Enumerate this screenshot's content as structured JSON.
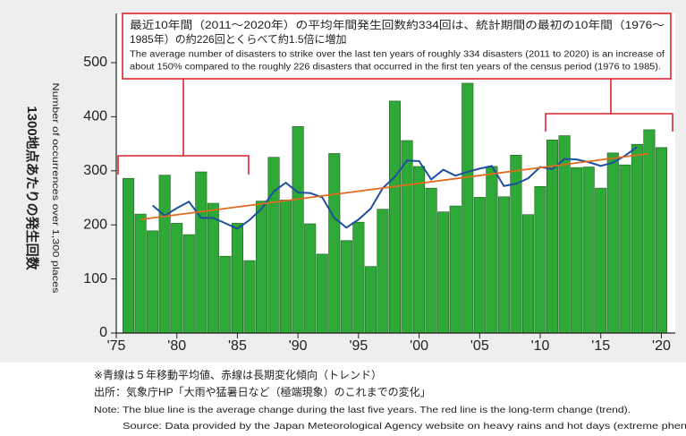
{
  "chart_data": {
    "type": "bar",
    "ylabel": "1300地点あたりの発生回数",
    "ylabel_en": "Number of occurrences over 1,300 places",
    "annotation": [
      "最近10年間（2011～2020年）の平均年間発生回数約334回は、統計期間の最初の10年間（1976～",
      "1985年）の約226回とくらべて約1.5倍に増加",
      "The average number of disasters to strike over the last ten years of roughly 334 disasters (2011 to 2020) is an increase of",
      "about 150% compared to the roughly 226 disasters that occurred in the first ten years of the census period (1976 to 1985)."
    ],
    "notes": [
      "※青線は５年移動平均値、赤線は長期変化傾向（トレンド）",
      "出所：気象庁HP「大雨や猛暑日など（極端現象）のこれまでの変化」",
      "Note: The blue line is the average change during the last five years. The red line is the long-term change (trend).",
      "Source: Data provided by the Japan Meteorological Agency website on heavy rains and hot days (extreme phenomena"
    ],
    "x": [
      1976,
      1977,
      1978,
      1979,
      1980,
      1981,
      1982,
      1983,
      1984,
      1985,
      1986,
      1987,
      1988,
      1989,
      1990,
      1991,
      1992,
      1993,
      1994,
      1995,
      1996,
      1997,
      1998,
      1999,
      2000,
      2001,
      2002,
      2003,
      2004,
      2005,
      2006,
      2007,
      2008,
      2009,
      2010,
      2011,
      2012,
      2013,
      2014,
      2015,
      2016,
      2017,
      2018,
      2019,
      2020
    ],
    "values": [
      286,
      220,
      189,
      292,
      203,
      182,
      298,
      240,
      142,
      203,
      134,
      244,
      325,
      246,
      382,
      202,
      146,
      332,
      171,
      205,
      123,
      229,
      429,
      356,
      308,
      268,
      224,
      235,
      462,
      251,
      308,
      252,
      329,
      219,
      271,
      357,
      365,
      306,
      307,
      268,
      333,
      311,
      349,
      376,
      343
    ],
    "color": "#2ea836",
    "lines": [
      {
        "color": "#1f4fa0",
        "x": [
          1978,
          1979,
          1980,
          1981,
          1982,
          1983,
          1984,
          1985,
          1986,
          1987,
          1988,
          1989,
          1990,
          1991,
          1992,
          1993,
          1994,
          1995,
          1996,
          1997,
          1998,
          1999,
          2000,
          2001,
          2002,
          2003,
          2004,
          2005,
          2006,
          2007,
          2008,
          2009,
          2010,
          2011,
          2012,
          2013,
          2014,
          2015,
          2016,
          2017,
          2018
        ],
        "values": [
          236,
          217,
          231,
          243,
          213,
          213,
          203,
          193,
          209,
          230,
          262,
          278,
          260,
          259,
          251,
          213,
          195,
          210,
          230,
          268,
          289,
          319,
          318,
          284,
          302,
          291,
          298,
          304,
          309,
          272,
          276,
          286,
          307,
          303,
          322,
          321,
          316,
          309,
          315,
          328,
          344
        ]
      },
      {
        "color": "#e06a1e",
        "x": [
          1977,
          2019
        ],
        "values": [
          210,
          332
        ]
      }
    ],
    "xlim": [
      1975,
      2021
    ],
    "ylim": [
      0,
      500
    ],
    "xticks": [
      {
        "value": 1975,
        "label": "'75"
      },
      {
        "value": 1980,
        "label": "'80"
      },
      {
        "value": 1985,
        "label": "'85"
      },
      {
        "value": 1990,
        "label": "'90"
      },
      {
        "value": 1995,
        "label": "'95"
      },
      {
        "value": 2000,
        "label": "'00"
      },
      {
        "value": 2005,
        "label": "'05"
      },
      {
        "value": 2010,
        "label": "'10"
      },
      {
        "value": 2015,
        "label": "'15"
      },
      {
        "value": 2020,
        "label": "'20"
      }
    ],
    "yticks": [
      0,
      100,
      200,
      300,
      400,
      500
    ]
  }
}
